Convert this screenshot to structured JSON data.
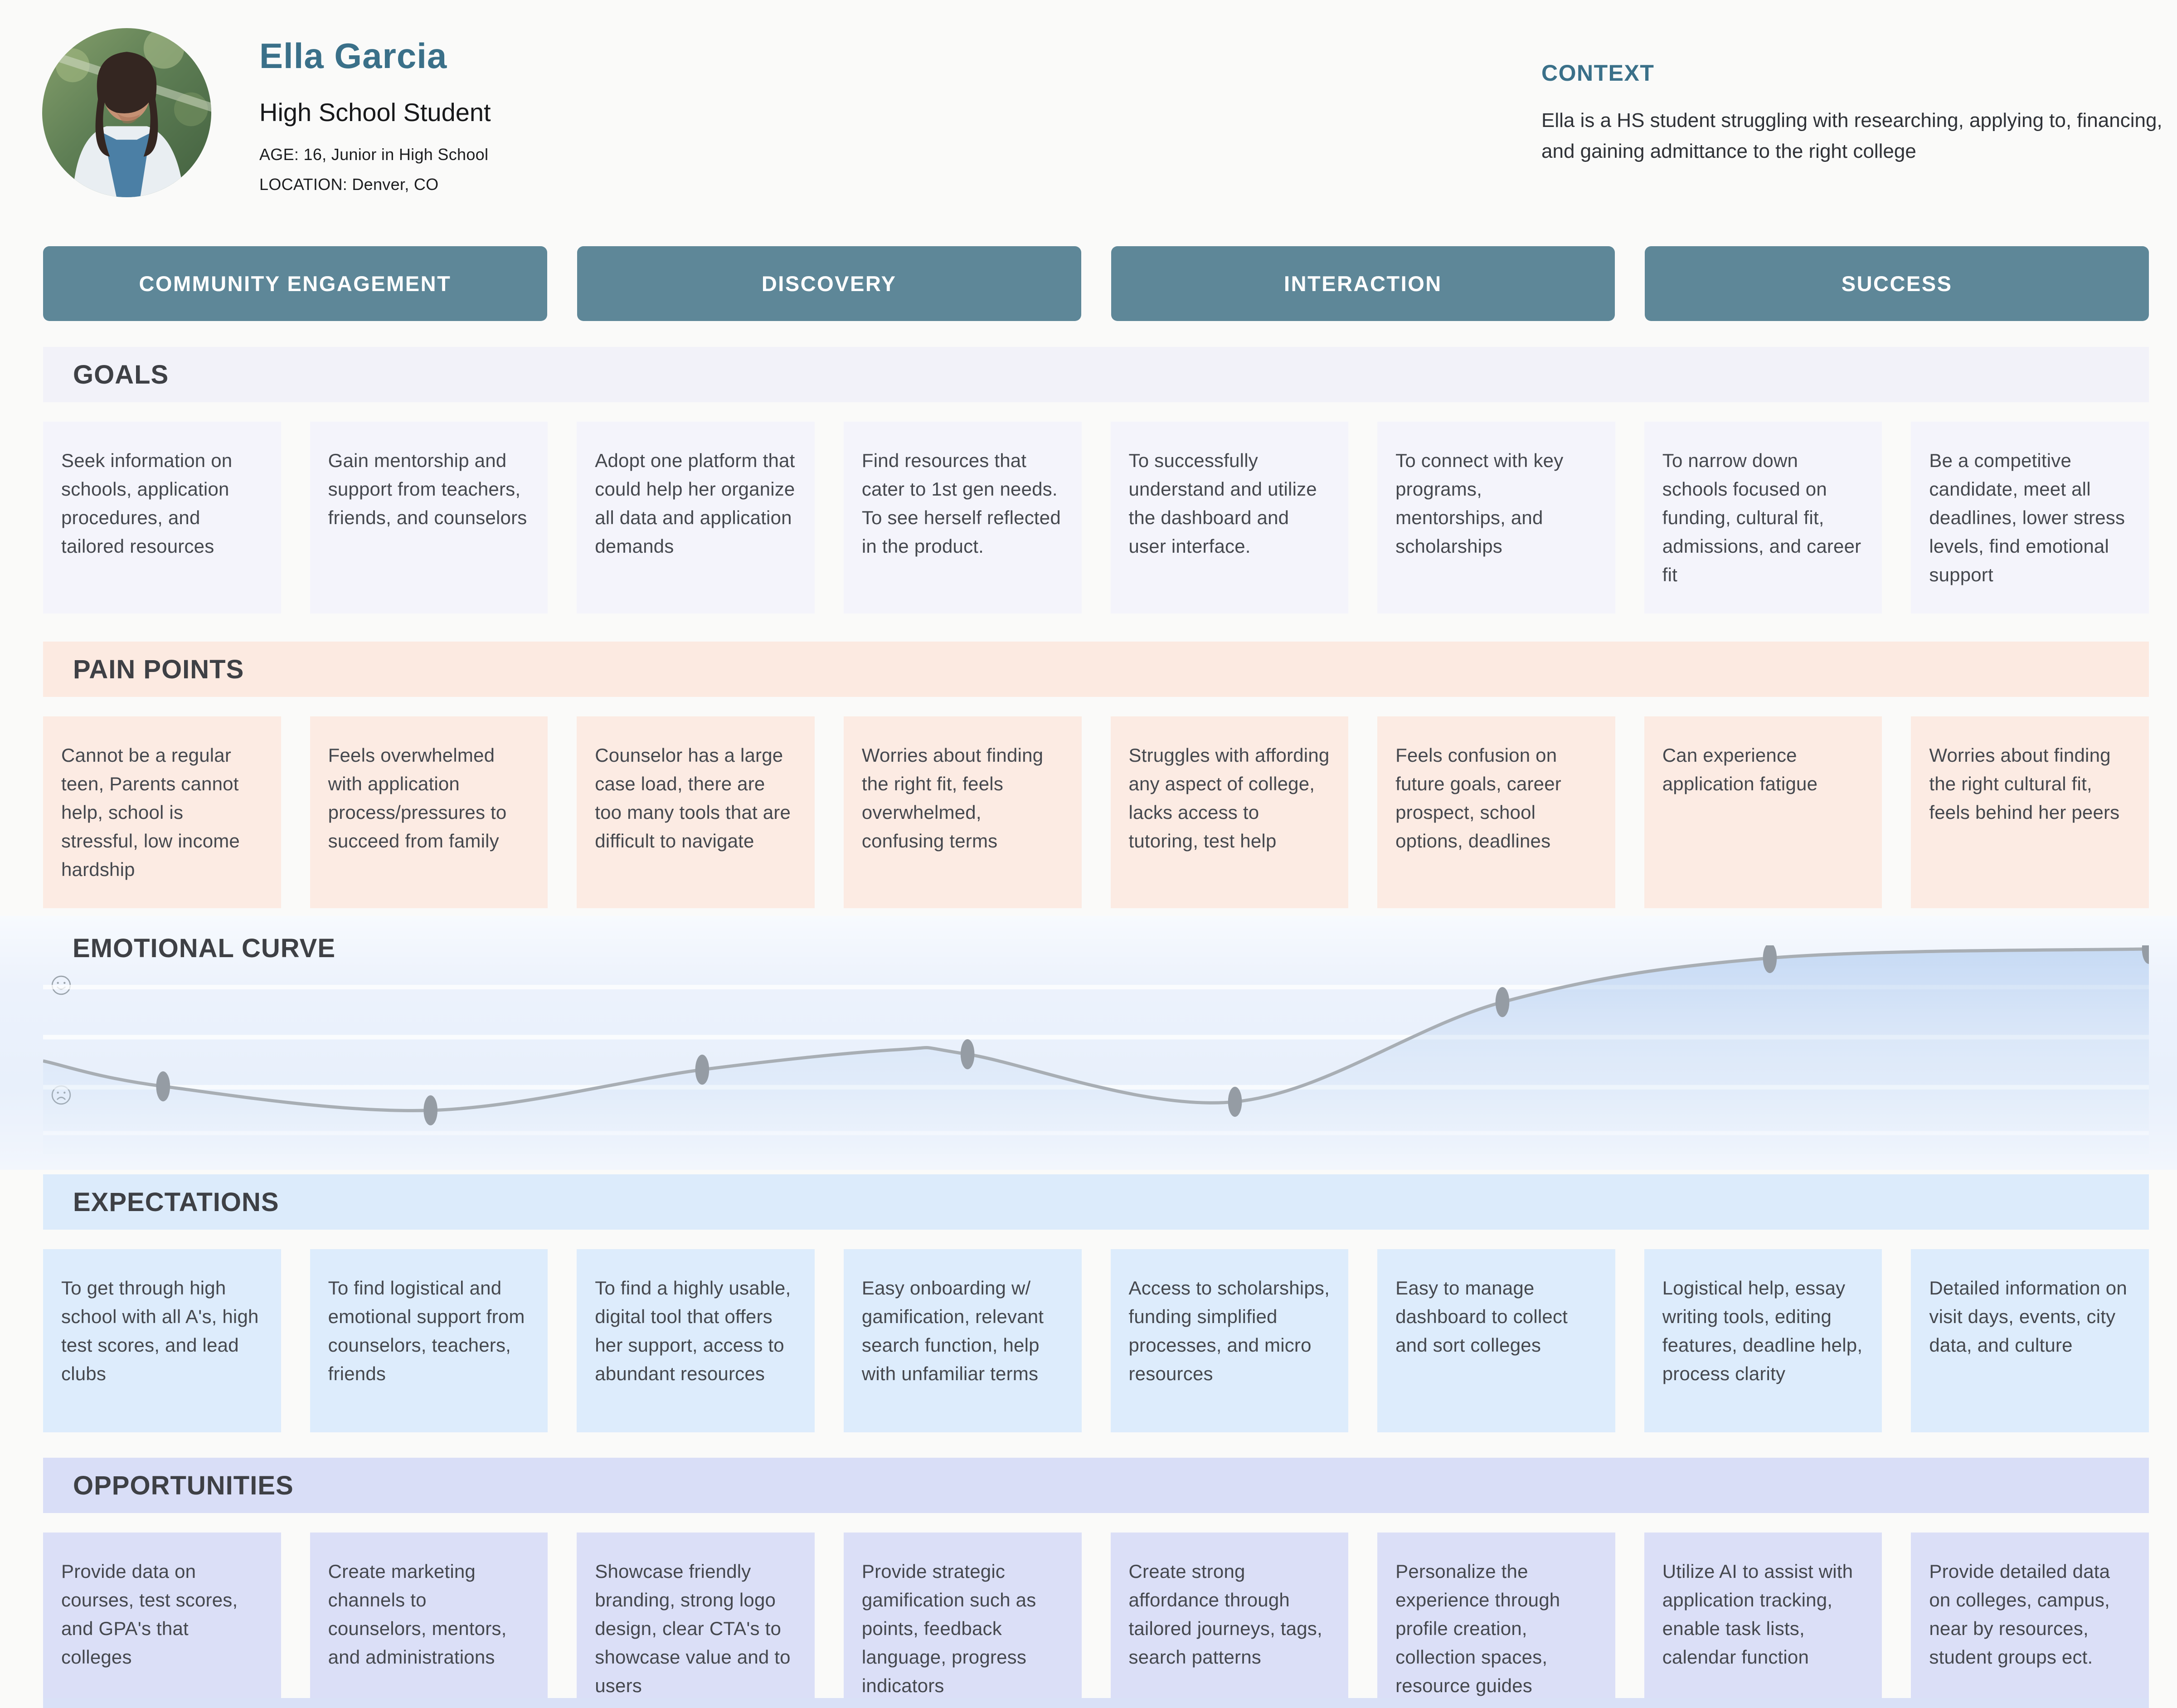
{
  "colors": {
    "accent_teal": "#3a7089",
    "phase_header": "#5e8798",
    "goals_bar": "#f2f2f9",
    "goals_card": "#f4f4fb",
    "pain_bar": "#fceae1",
    "pain_card": "#fcebe3",
    "expectations_bar": "#dcebfb",
    "expectations_card": "#ddecfc",
    "opportunities_bar": "#d9def7",
    "opportunities_card": "#dbdff7",
    "curve_line": "#a8aeb4",
    "curve_dot": "#959ca4",
    "bottom_strip": "#d9e1f7",
    "background": "#fafaf9"
  },
  "persona": {
    "name": "Ella Garcia",
    "role": "High School Student",
    "age": "AGE: 16, Junior in High School",
    "location": "LOCATION: Denver, CO"
  },
  "context": {
    "title": "CONTEXT",
    "body": "Ella is a HS student struggling with researching, applying to, financing, and gaining admittance to the right college"
  },
  "phases": {
    "items": [
      "COMMUNITY ENGAGEMENT",
      "DISCOVERY",
      "INTERACTION",
      "SUCCESS"
    ]
  },
  "goals": {
    "label": "GOALS",
    "cards": [
      "Seek information on schools, application procedures, and tailored resources",
      "Gain mentorship and support from teachers, friends, and counselors",
      "Adopt one platform that could help her organize all data and application demands",
      "Find resources that cater to 1st gen needs. To see herself reflected in the product.",
      "To successfully understand and utilize the dashboard and user interface.",
      "To connect with key programs, mentorships, and scholarships",
      "To narrow down schools focused on funding, cultural fit, admissions, and career fit",
      "Be a competitive candidate, meet all deadlines, lower stress levels, find emotional support"
    ]
  },
  "pain_points": {
    "label": "PAIN POINTS",
    "cards": [
      "Cannot be a regular teen, Parents cannot help, school is stressful, low income hardship",
      "Feels overwhelmed with application process/pressures to succeed from family",
      "Counselor has a large case load, there are too many tools that are difficult to navigate",
      "Worries about finding the right fit, feels overwhelmed, confusing terms",
      "Struggles with affording any aspect of college, lacks access to tutoring, test help",
      "Feels confusion on future goals, career prospect, school options, deadlines",
      "Can experience application fatigue",
      "Worries about finding the right cultural fit, feels behind her peers"
    ]
  },
  "emotional_curve": {
    "label": "EMOTIONAL CURVE",
    "high_icon": "happy-face",
    "low_icon": "sad-face"
  },
  "expectations": {
    "label": "EXPECTATIONS",
    "cards": [
      "To get through high school with all A's, high test scores, and lead clubs",
      "To find logistical and emotional support from counselors, teachers, friends",
      "To find a highly usable, digital tool that offers her support, access to abundant resources",
      "Easy onboarding w/ gamification, relevant search function, help with unfamiliar terms",
      "Access to scholarships, funding simplified processes, and micro resources",
      "Easy to manage dashboard to collect and sort colleges",
      "Logistical help, essay writing tools, editing features, deadline help, process clarity",
      "Detailed information on visit days, events, city data, and culture"
    ]
  },
  "opportunities": {
    "label": "OPPORTUNITIES",
    "cards": [
      "Provide data on courses, test scores, and GPA's that colleges",
      "Create marketing channels to counselors, mentors, and administrations",
      "Showcase friendly branding, strong logo design, clear CTA's to showcase value and to users",
      "Provide strategic gamification such as points, feedback language, progress indicators",
      "Create strong affordance through tailored journeys, tags, search patterns",
      "Personalize the experience through profile creation, collection spaces, resource guides",
      "Utilize AI to assist with application tracking, enable task lists, calendar function",
      "Provide detailed data on colleges, campus, near by resources, student groups ect."
    ]
  },
  "chart_data": {
    "type": "line",
    "title": "EMOTIONAL CURVE",
    "xlabel": "journey stage (Community Engagement to Success)",
    "ylabel": "emotion (top = happy, bottom = sad)",
    "y_unit": "percent from top of curve band",
    "grid": "faint horizontal white stripes",
    "legend_position": "none",
    "points": [
      {
        "x": 0.0,
        "y": 55.4,
        "dot": false
      },
      {
        "x": 5.7,
        "y": 67.6,
        "dot": true
      },
      {
        "x": 18.4,
        "y": 79.1,
        "dot": true
      },
      {
        "x": 31.3,
        "y": 59.6,
        "dot": true
      },
      {
        "x": 40.6,
        "y": 50.0,
        "dot": false
      },
      {
        "x": 43.9,
        "y": 52.2,
        "dot": true
      },
      {
        "x": 56.6,
        "y": 75.0,
        "dot": true
      },
      {
        "x": 69.3,
        "y": 27.2,
        "dot": true
      },
      {
        "x": 82.0,
        "y": 6.1,
        "dot": true
      },
      {
        "x": 100.0,
        "y": 1.7,
        "dot": true
      }
    ]
  }
}
